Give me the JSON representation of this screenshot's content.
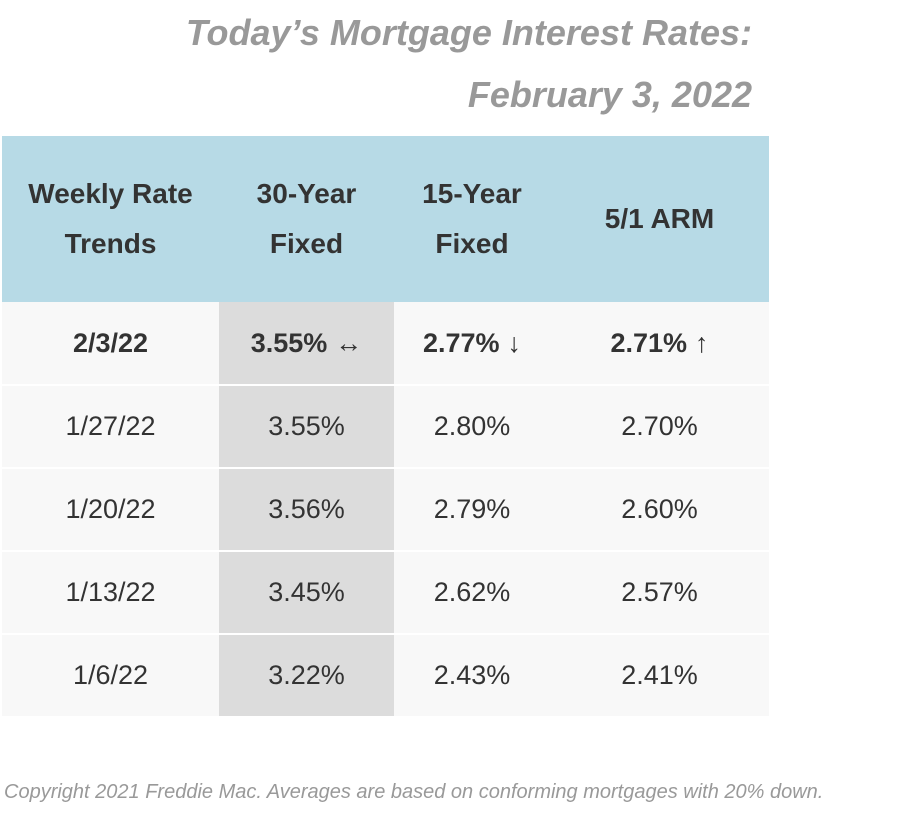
{
  "title": {
    "line1": "Today’s Mortgage Interest Rates:",
    "line2": "February 3, 2022"
  },
  "table": {
    "headers": [
      [
        "Weekly Rate",
        "Trends"
      ],
      [
        "30-Year",
        "Fixed"
      ],
      [
        "15-Year",
        "Fixed"
      ],
      [
        "5/1 ARM"
      ]
    ],
    "rows": [
      {
        "date": "2/3/22",
        "fixed30": "3.55%",
        "fixed30_trend": "↔",
        "fixed15": "2.77%",
        "fixed15_trend": "↓",
        "arm51": "2.71%",
        "arm51_trend": "↑"
      },
      {
        "date": "1/27/22",
        "fixed30": "3.55%",
        "fixed15": "2.80%",
        "arm51": "2.70%"
      },
      {
        "date": "1/20/22",
        "fixed30": "3.56%",
        "fixed15": "2.79%",
        "arm51": "2.60%"
      },
      {
        "date": "1/13/22",
        "fixed30": "3.45%",
        "fixed15": "2.62%",
        "arm51": "2.57%"
      },
      {
        "date": "1/6/22",
        "fixed30": "3.22%",
        "fixed15": "2.43%",
        "arm51": "2.41%"
      }
    ]
  },
  "footer": {
    "copyright": "Copyright 2021 Freddie Mac. Averages are based on conforming mortgages with 20% down."
  },
  "colors": {
    "header_background": "#b7dae6",
    "highlight_column": "#dcdcdc",
    "row_background": "#f8f8f8",
    "title_text": "#999999"
  }
}
